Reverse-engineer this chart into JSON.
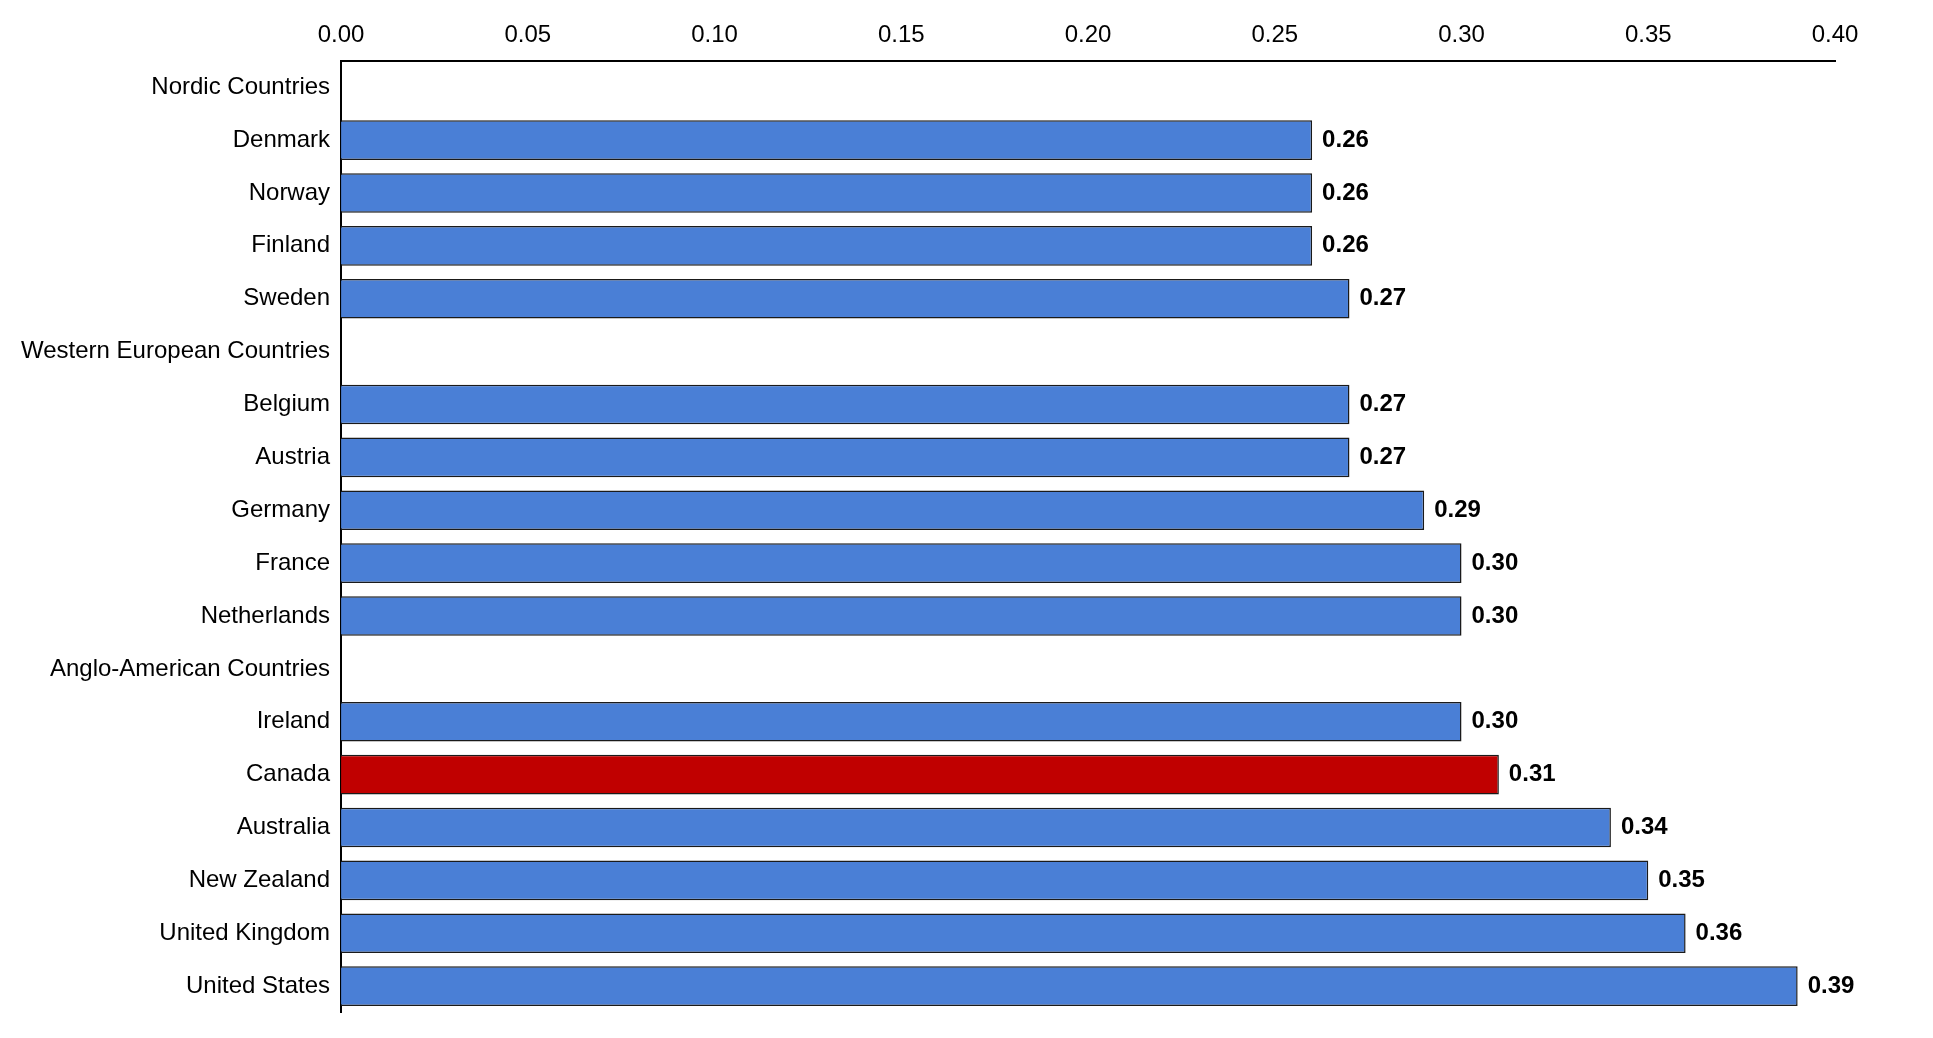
{
  "chart_data": {
    "type": "bar",
    "orientation": "horizontal",
    "categories": [
      "Nordic Countries",
      "Denmark",
      "Norway",
      "Finland",
      "Sweden",
      "Western European Countries",
      "Belgium",
      "Austria",
      "Germany",
      "France",
      "Netherlands",
      "Anglo-American Countries",
      "Ireland",
      "Canada",
      "Australia",
      "New Zealand",
      "United Kingdom",
      "United States"
    ],
    "values": [
      null,
      0.26,
      0.26,
      0.26,
      0.27,
      null,
      0.27,
      0.27,
      0.29,
      0.3,
      0.3,
      null,
      0.3,
      0.31,
      0.34,
      0.35,
      0.36,
      0.39
    ],
    "value_labels": [
      null,
      "0.26",
      "0.26",
      "0.26",
      "0.27",
      null,
      "0.27",
      "0.27",
      "0.29",
      "0.30",
      "0.30",
      null,
      "0.30",
      "0.31",
      "0.34",
      "0.35",
      "0.36",
      "0.39"
    ],
    "colors": [
      "#4a7fd6",
      "#4a7fd6",
      "#4a7fd6",
      "#4a7fd6",
      "#4a7fd6",
      "#4a7fd6",
      "#4a7fd6",
      "#4a7fd6",
      "#4a7fd6",
      "#4a7fd6",
      "#4a7fd6",
      "#4a7fd6",
      "#4a7fd6",
      "#c00000",
      "#4a7fd6",
      "#4a7fd6",
      "#4a7fd6",
      "#4a7fd6"
    ],
    "xlim": [
      0,
      0.4
    ],
    "xticks": [
      {
        "value": 0,
        "label": "0.00"
      },
      {
        "value": 0.05,
        "label": "0.05"
      },
      {
        "value": 0.1,
        "label": "0.10"
      },
      {
        "value": 0.15,
        "label": "0.15"
      },
      {
        "value": 0.2,
        "label": "0.20"
      },
      {
        "value": 0.25,
        "label": "0.25"
      },
      {
        "value": 0.3,
        "label": "0.30"
      },
      {
        "value": 0.35,
        "label": "0.35"
      },
      {
        "value": 0.4,
        "label": "0.40"
      }
    ],
    "grid": false,
    "legend": false
  }
}
